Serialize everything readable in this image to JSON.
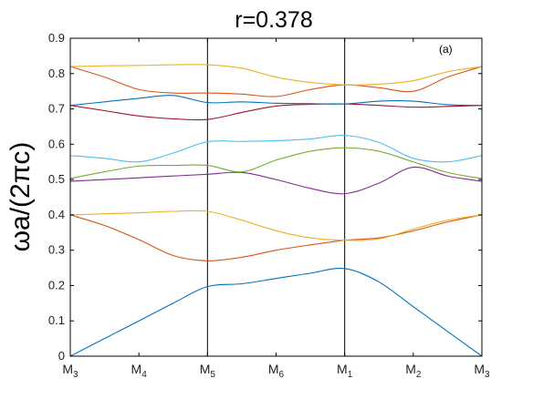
{
  "chart_data": {
    "type": "line",
    "title": "r=0.378",
    "ylabel": "ωa/(2πc)",
    "annotation": "(a)",
    "ylim": [
      0,
      0.9
    ],
    "yticks": [
      "0",
      "0.1",
      "0.2",
      "0.3",
      "0.4",
      "0.5",
      "0.6",
      "0.7",
      "0.8",
      "0.9"
    ],
    "xlim": [
      0,
      6
    ],
    "xticks": [
      {
        "main": "M",
        "sub": "3"
      },
      {
        "main": "M",
        "sub": "4"
      },
      {
        "main": "M",
        "sub": "5"
      },
      {
        "main": "M",
        "sub": "6"
      },
      {
        "main": "M",
        "sub": "1"
      },
      {
        "main": "M",
        "sub": "2"
      },
      {
        "main": "M",
        "sub": "3"
      }
    ],
    "vertical_lines": [
      2,
      4
    ],
    "x": [
      0,
      0.5,
      1,
      1.5,
      2,
      2.5,
      3,
      3.5,
      4,
      4.5,
      5,
      5.5,
      6
    ],
    "series": [
      {
        "color": "#0072BD",
        "values": [
          0,
          0.05,
          0.1,
          0.15,
          0.197,
          0.205,
          0.22,
          0.235,
          0.248,
          0.21,
          0.14,
          0.07,
          0
        ]
      },
      {
        "color": "#D95319",
        "values": [
          0.4,
          0.37,
          0.33,
          0.285,
          0.27,
          0.28,
          0.3,
          0.315,
          0.328,
          0.335,
          0.355,
          0.38,
          0.4
        ]
      },
      {
        "color": "#EDB120",
        "values": [
          0.4,
          0.403,
          0.406,
          0.41,
          0.41,
          0.385,
          0.355,
          0.335,
          0.328,
          0.332,
          0.36,
          0.385,
          0.4
        ]
      },
      {
        "color": "#7E2F8E",
        "values": [
          0.495,
          0.5,
          0.505,
          0.51,
          0.515,
          0.52,
          0.5,
          0.475,
          0.46,
          0.49,
          0.535,
          0.51,
          0.495
        ]
      },
      {
        "color": "#77AC30",
        "values": [
          0.503,
          0.522,
          0.538,
          0.54,
          0.54,
          0.522,
          0.555,
          0.58,
          0.59,
          0.58,
          0.55,
          0.52,
          0.503
        ]
      },
      {
        "color": "#4DBEEE",
        "values": [
          0.568,
          0.56,
          0.55,
          0.575,
          0.607,
          0.608,
          0.61,
          0.615,
          0.625,
          0.605,
          0.56,
          0.55,
          0.568
        ]
      },
      {
        "color": "#A2142F",
        "values": [
          0.71,
          0.695,
          0.68,
          0.672,
          0.67,
          0.69,
          0.708,
          0.713,
          0.714,
          0.71,
          0.705,
          0.707,
          0.71
        ]
      },
      {
        "color": "#0072BD",
        "values": [
          0.71,
          0.72,
          0.73,
          0.738,
          0.718,
          0.72,
          0.716,
          0.715,
          0.714,
          0.722,
          0.722,
          0.712,
          0.71
        ]
      },
      {
        "color": "#D95319",
        "values": [
          0.82,
          0.79,
          0.755,
          0.745,
          0.745,
          0.742,
          0.735,
          0.755,
          0.768,
          0.76,
          0.75,
          0.79,
          0.82
        ]
      },
      {
        "color": "#EDB120",
        "values": [
          0.82,
          0.822,
          0.823,
          0.825,
          0.825,
          0.815,
          0.79,
          0.775,
          0.768,
          0.77,
          0.78,
          0.805,
          0.82
        ]
      }
    ]
  }
}
